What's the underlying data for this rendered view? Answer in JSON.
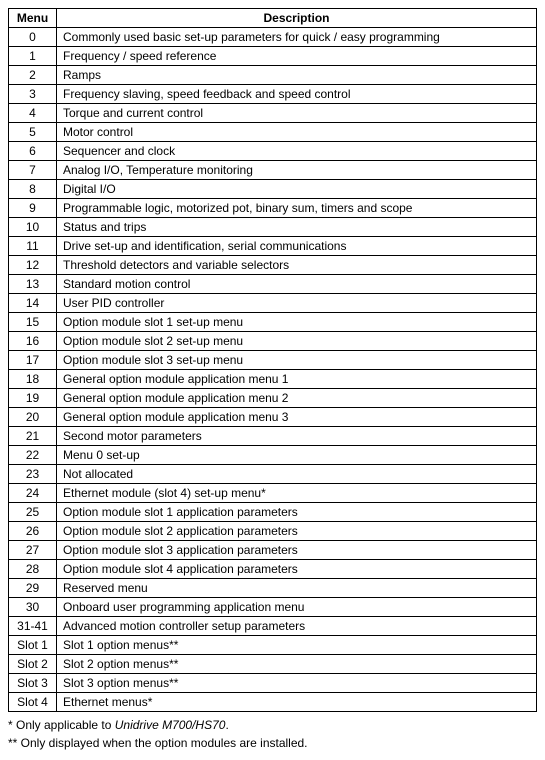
{
  "table": {
    "headers": {
      "menu": "Menu",
      "description": "Description"
    },
    "rows": [
      {
        "menu": "0",
        "desc": "Commonly used basic set-up parameters for quick / easy programming"
      },
      {
        "menu": "1",
        "desc": "Frequency / speed reference"
      },
      {
        "menu": "2",
        "desc": "Ramps"
      },
      {
        "menu": "3",
        "desc": "Frequency slaving, speed feedback and speed control"
      },
      {
        "menu": "4",
        "desc": "Torque and current control"
      },
      {
        "menu": "5",
        "desc": "Motor control"
      },
      {
        "menu": "6",
        "desc": "Sequencer and clock"
      },
      {
        "menu": "7",
        "desc": "Analog I/O, Temperature monitoring"
      },
      {
        "menu": "8",
        "desc": "Digital I/O"
      },
      {
        "menu": "9",
        "desc": "Programmable logic, motorized pot, binary sum, timers and scope"
      },
      {
        "menu": "10",
        "desc": "Status and trips"
      },
      {
        "menu": "11",
        "desc": "Drive set-up and identification, serial communications"
      },
      {
        "menu": "12",
        "desc": "Threshold detectors and variable selectors"
      },
      {
        "menu": "13",
        "desc": "Standard motion control"
      },
      {
        "menu": "14",
        "desc": "User PID controller"
      },
      {
        "menu": "15",
        "desc": "Option module slot 1 set-up menu"
      },
      {
        "menu": "16",
        "desc": "Option module slot 2 set-up menu"
      },
      {
        "menu": "17",
        "desc": "Option module slot 3 set-up menu"
      },
      {
        "menu": "18",
        "desc": "General option module application menu 1"
      },
      {
        "menu": "19",
        "desc": "General option module application menu 2"
      },
      {
        "menu": "20",
        "desc": "General option module application menu 3"
      },
      {
        "menu": "21",
        "desc": "Second motor parameters"
      },
      {
        "menu": "22",
        "desc": "Menu 0 set-up"
      },
      {
        "menu": "23",
        "desc": "Not allocated"
      },
      {
        "menu": "24",
        "desc": "Ethernet module (slot 4) set-up menu*"
      },
      {
        "menu": "25",
        "desc": "Option module slot 1 application parameters"
      },
      {
        "menu": "26",
        "desc": "Option module slot 2 application parameters"
      },
      {
        "menu": "27",
        "desc": "Option module slot 3 application parameters"
      },
      {
        "menu": "28",
        "desc": "Option module slot 4 application parameters"
      },
      {
        "menu": "29",
        "desc": "Reserved menu"
      },
      {
        "menu": "30",
        "desc": "Onboard user programming application menu"
      },
      {
        "menu": "31-41",
        "desc": "Advanced motion controller setup parameters"
      },
      {
        "menu": "Slot 1",
        "desc": "Slot 1 option menus**"
      },
      {
        "menu": "Slot 2",
        "desc": "Slot 2 option menus**"
      },
      {
        "menu": "Slot 3",
        "desc": "Slot 3 option menus**"
      },
      {
        "menu": "Slot 4",
        "desc": "Ethernet menus*"
      }
    ]
  },
  "footnotes": {
    "line1_prefix": "* Only applicable to ",
    "line1_em": "Unidrive M700/HS70",
    "line1_suffix": ".",
    "line2": "** Only displayed when the option modules are installed."
  }
}
